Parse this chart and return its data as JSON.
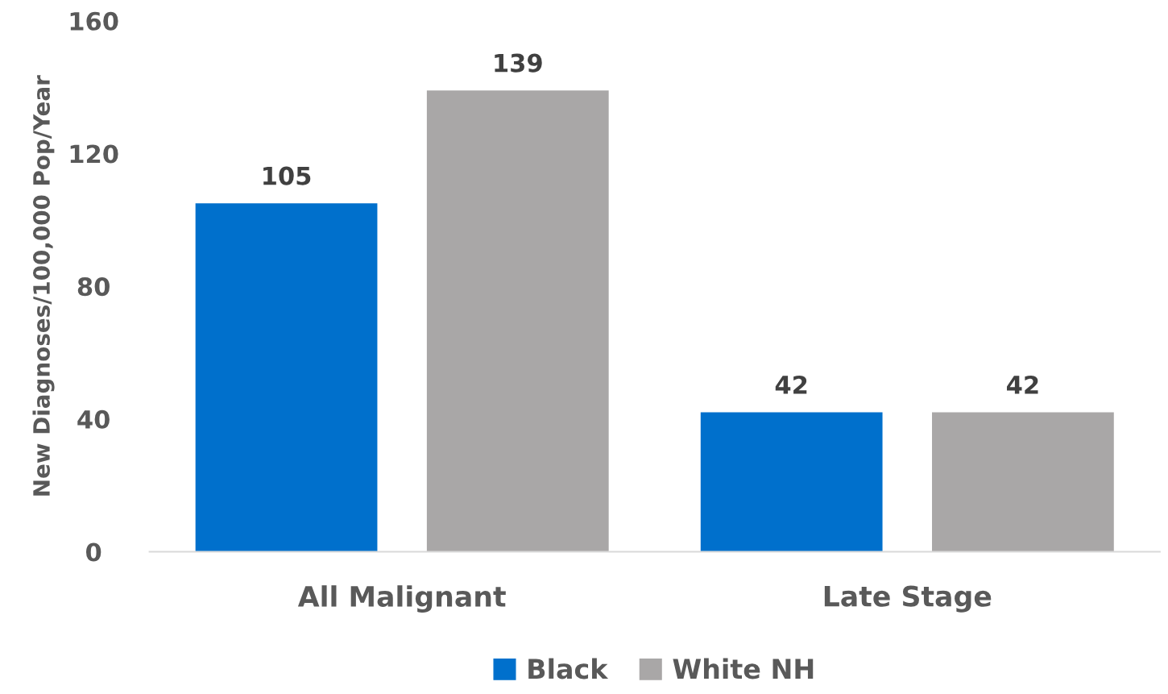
{
  "chart_data": {
    "type": "bar",
    "ylabel": "New Diagnoses/100,000 Pop/Year",
    "categories": [
      "All Malignant",
      "Late Stage"
    ],
    "series": [
      {
        "name": "Black",
        "color": "#0070cc",
        "values": [
          105,
          42
        ]
      },
      {
        "name": "White NH",
        "color": "#a9a7a7",
        "values": [
          139,
          42
        ]
      }
    ],
    "ylim": [
      0,
      160
    ],
    "yticks": [
      0,
      40,
      80,
      120,
      160
    ],
    "grid": false,
    "legend": "bottom",
    "data_labels": true
  }
}
